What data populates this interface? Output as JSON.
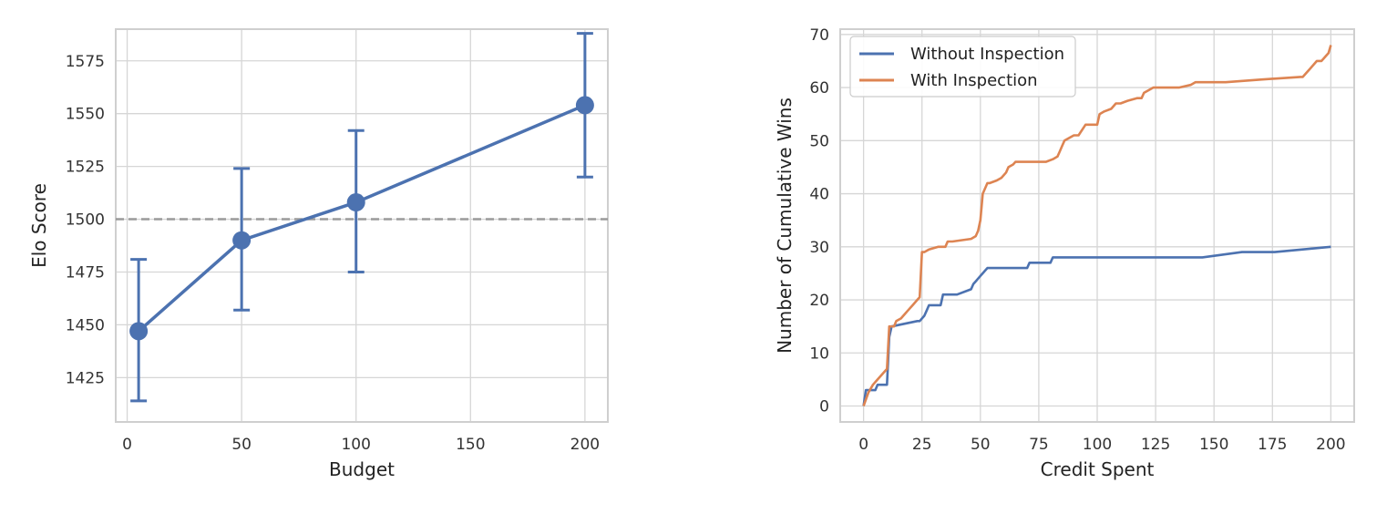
{
  "colors": {
    "blue": "#4c72b0",
    "orange": "#dd8452",
    "grid": "#d6d6d6",
    "frame": "#cfcfcf",
    "refline": "#9a9a9a"
  },
  "chart_data": [
    {
      "type": "line",
      "xlabel": "Budget",
      "ylabel": "Elo Score",
      "xlim": [
        -5,
        210
      ],
      "ylim": [
        1404,
        1590
      ],
      "xticks": [
        "0",
        "50",
        "100",
        "150",
        "200"
      ],
      "yticks": [
        "1425",
        "1450",
        "1475",
        "1500",
        "1525",
        "1550",
        "1575"
      ],
      "reference_line": 1500,
      "grid": true,
      "series": [
        {
          "x": [
            5,
            50,
            100,
            200
          ],
          "y": [
            1447,
            1490,
            1508,
            1554
          ],
          "err_low": [
            1414,
            1457,
            1475,
            1520
          ],
          "err_high": [
            1481,
            1524,
            1542,
            1588
          ]
        }
      ]
    },
    {
      "type": "line",
      "xlabel": "Credit Spent",
      "ylabel": "Number of Cumulative Wins",
      "xlim": [
        -10,
        210
      ],
      "ylim": [
        -3,
        71
      ],
      "xticks": [
        "0",
        "25",
        "50",
        "75",
        "100",
        "125",
        "150",
        "175",
        "200"
      ],
      "yticks": [
        "0",
        "10",
        "20",
        "30",
        "40",
        "50",
        "60",
        "70"
      ],
      "grid": true,
      "legend": "top-left",
      "series": [
        {
          "name": "Without Inspection",
          "x": [
            0,
            1,
            5,
            6,
            10,
            11,
            12,
            23,
            24,
            26,
            27,
            28,
            33,
            34,
            40,
            46,
            47,
            48,
            49,
            50,
            51,
            52,
            53,
            70,
            71,
            80,
            81,
            145,
            162,
            176,
            200
          ],
          "y": [
            0,
            3,
            3,
            4,
            4,
            13,
            15,
            16,
            16,
            17,
            18,
            19,
            19,
            21,
            21,
            22,
            23,
            23.5,
            24,
            24.5,
            25,
            25.5,
            26,
            26,
            27,
            27,
            28,
            28,
            29,
            29,
            30
          ]
        },
        {
          "name": "With Inspection",
          "x": [
            0,
            2,
            4,
            6,
            8,
            10,
            11,
            13,
            14,
            16,
            17,
            19,
            21,
            23,
            24,
            25,
            26,
            28,
            32,
            35,
            36,
            38,
            46,
            48,
            49,
            50,
            51,
            53,
            54,
            57,
            59,
            61,
            62,
            64,
            65,
            66,
            68,
            77,
            78,
            81,
            83,
            84,
            85,
            86,
            88,
            90,
            92,
            95,
            96,
            100,
            101,
            103,
            106,
            108,
            110,
            113,
            117,
            119,
            120,
            122,
            124,
            135,
            140,
            142,
            155,
            170,
            187,
            188,
            190,
            191,
            192,
            194,
            195,
            196,
            197,
            198,
            199,
            200
          ],
          "y": [
            0,
            2.5,
            4,
            5,
            6,
            7,
            15,
            15,
            16,
            16.5,
            17,
            18,
            19,
            20,
            20.5,
            29,
            29,
            29.5,
            30,
            30,
            31,
            31,
            31.5,
            32,
            33,
            35,
            40,
            42,
            42,
            42.5,
            43,
            44,
            45,
            45.5,
            46,
            46,
            46,
            46,
            46,
            46.5,
            47,
            48,
            49,
            50,
            50.5,
            51,
            51,
            53,
            53,
            53,
            55,
            55.5,
            56,
            57,
            57,
            57.5,
            58,
            58,
            59,
            59.5,
            60,
            60,
            60.5,
            61,
            61,
            61.5,
            62,
            62,
            63,
            63.5,
            64,
            65,
            65,
            65,
            65.5,
            66,
            66.5,
            68
          ]
        }
      ]
    }
  ]
}
